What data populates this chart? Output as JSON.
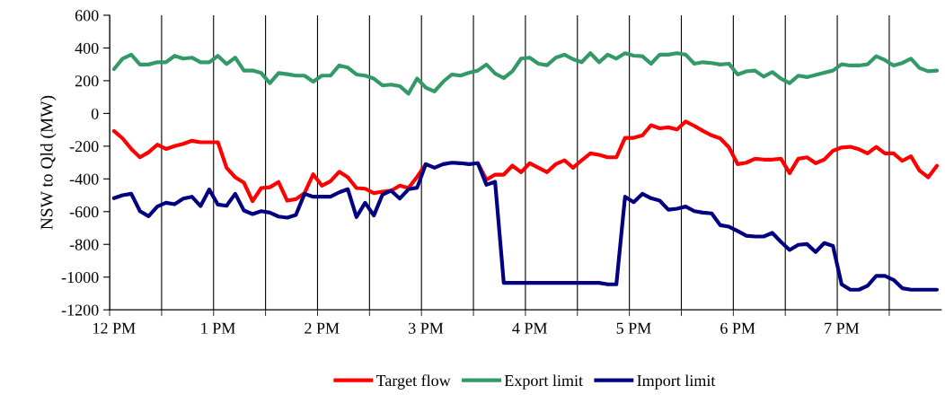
{
  "chart_data": {
    "type": "line",
    "ylabel": "NSW to Qld (MW)",
    "categories": [
      "12 PM",
      null,
      null,
      null,
      null,
      null,
      null,
      null,
      null,
      null,
      null,
      null,
      "1 PM",
      null,
      null,
      null,
      null,
      null,
      null,
      null,
      null,
      null,
      null,
      null,
      "2 PM",
      null,
      null,
      null,
      null,
      null,
      null,
      null,
      null,
      null,
      null,
      null,
      "3 PM",
      null,
      null,
      null,
      null,
      null,
      null,
      null,
      null,
      null,
      null,
      null,
      "4 PM",
      null,
      null,
      null,
      null,
      null,
      null,
      null,
      null,
      null,
      null,
      null,
      "5 PM",
      null,
      null,
      null,
      null,
      null,
      null,
      null,
      null,
      null,
      null,
      null,
      "6 PM",
      null,
      null,
      null,
      null,
      null,
      null,
      null,
      null,
      null,
      null,
      null,
      "7 PM",
      null,
      null,
      null,
      null,
      null,
      null,
      null,
      null,
      null,
      null,
      null
    ],
    "series": [
      {
        "name": "Target flow",
        "color": "#ff0000",
        "values": [
          -107,
          -153,
          -217,
          -268,
          -237,
          -191,
          -217,
          -200,
          -186,
          -167,
          -176,
          -176,
          -176,
          -332,
          -390,
          -423,
          -536,
          -456,
          -451,
          -419,
          -533,
          -524,
          -487,
          -372,
          -441,
          -414,
          -356,
          -390,
          -456,
          -460,
          -487,
          -478,
          -472,
          -441,
          -456,
          -387,
          -310,
          null,
          null,
          null,
          null,
          null,
          -304,
          -405,
          -374,
          -374,
          -319,
          -359,
          -304,
          -332,
          -359,
          -310,
          -286,
          -332,
          -286,
          -244,
          -253,
          -268,
          -268,
          -149,
          -149,
          -134,
          -72,
          -91,
          -85,
          -98,
          -49,
          -76,
          -107,
          -134,
          -153,
          -208,
          -310,
          -301,
          -277,
          -282,
          -282,
          -277,
          -365,
          -277,
          -268,
          -304,
          -282,
          -228,
          -208,
          -204,
          -219,
          -244,
          -204,
          -244,
          -244,
          -290,
          -262,
          -350,
          -390,
          -320
        ]
      },
      {
        "name": "Export limit",
        "color": "#339966",
        "values": [
          271,
          335,
          359,
          299,
          299,
          313,
          313,
          352,
          335,
          341,
          313,
          313,
          352,
          302,
          341,
          262,
          262,
          247,
          185,
          247,
          240,
          231,
          231,
          194,
          231,
          231,
          293,
          280,
          238,
          231,
          213,
          171,
          176,
          167,
          121,
          213,
          158,
          134,
          194,
          238,
          231,
          249,
          262,
          299,
          244,
          216,
          258,
          335,
          341,
          304,
          295,
          341,
          359,
          331,
          313,
          368,
          313,
          359,
          335,
          368,
          353,
          350,
          304,
          359,
          359,
          368,
          359,
          304,
          313,
          308,
          299,
          304,
          238,
          257,
          262,
          225,
          253,
          213,
          185,
          231,
          222,
          235,
          249,
          262,
          300,
          293,
          293,
          300,
          350,
          326,
          293,
          308,
          335,
          277,
          258,
          262
        ]
      },
      {
        "name": "Import limit",
        "color": "#000080",
        "values": [
          -518,
          -500,
          -491,
          -597,
          -628,
          -569,
          -546,
          -555,
          -520,
          -509,
          -566,
          -465,
          -557,
          -564,
          -491,
          -593,
          -615,
          -597,
          -606,
          -630,
          -637,
          -620,
          -491,
          -509,
          -509,
          -509,
          -482,
          -463,
          -633,
          -546,
          -624,
          -496,
          -472,
          -520,
          -463,
          -454,
          -310,
          -332,
          -310,
          -301,
          -304,
          -310,
          -304,
          -436,
          -418,
          -1035,
          -1035,
          -1035,
          -1035,
          -1035,
          -1035,
          -1035,
          -1035,
          -1035,
          -1035,
          -1035,
          -1035,
          -1044,
          -1044,
          -509,
          -542,
          -491,
          -518,
          -533,
          -588,
          -582,
          -569,
          -597,
          -606,
          -611,
          -683,
          -692,
          -719,
          -747,
          -752,
          -752,
          -730,
          -785,
          -834,
          -803,
          -798,
          -847,
          -792,
          -810,
          -1044,
          -1077,
          -1077,
          -1053,
          -993,
          -993,
          -1017,
          -1068,
          -1077,
          -1077,
          -1077,
          -1077
        ]
      }
    ],
    "ylim": [
      -1200,
      600
    ],
    "yticks": [
      -1200,
      -1000,
      -800,
      -600,
      -400,
      -200,
      0,
      200,
      400,
      600
    ],
    "grid": "x",
    "legend": "bottom",
    "marker": "none",
    "line_style": "solid"
  }
}
